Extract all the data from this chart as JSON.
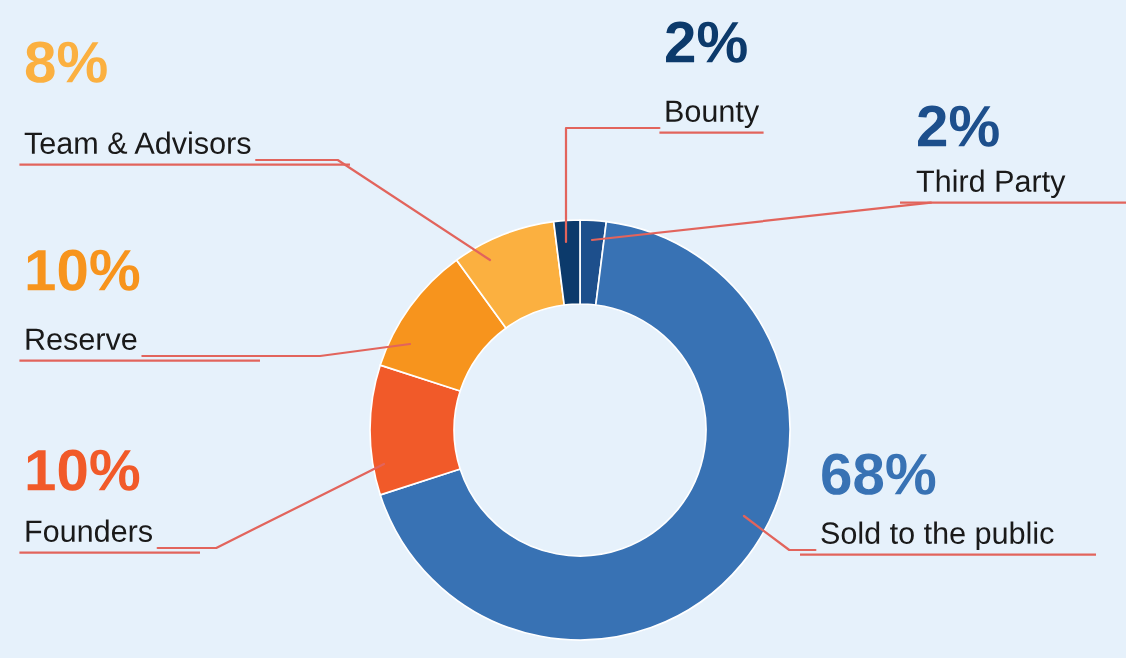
{
  "chart_data": {
    "type": "donut",
    "categories": [
      "Third Party",
      "Sold to the public",
      "Founders",
      "Reserve",
      "Team & Advisors",
      "Bounty"
    ],
    "values": [
      2,
      68,
      10,
      10,
      8,
      2
    ],
    "colors": [
      "#1d4f8c",
      "#3872b4",
      "#f15a29",
      "#f7941d",
      "#fbb040",
      "#0c3a6b"
    ],
    "value_labels": [
      "2%",
      "68%",
      "10%",
      "10%",
      "8%",
      "2%"
    ]
  }
}
